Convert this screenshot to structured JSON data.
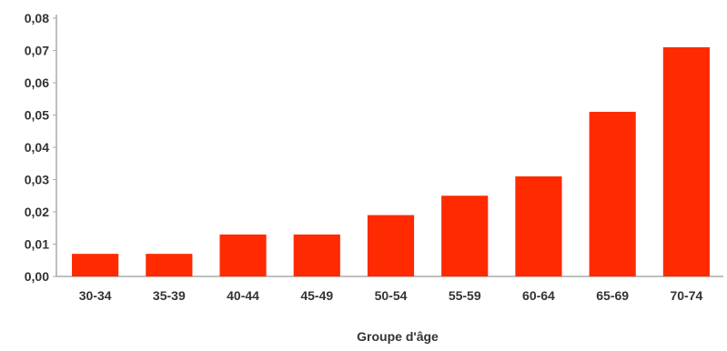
{
  "chart_data": {
    "type": "bar",
    "categories": [
      "30-34",
      "35-39",
      "40-44",
      "45-49",
      "50-54",
      "55-59",
      "60-64",
      "65-69",
      "70-74"
    ],
    "values": [
      0.007,
      0.007,
      0.013,
      0.013,
      0.019,
      0.025,
      0.031,
      0.051,
      0.071
    ],
    "xlabel": "Groupe d'âge",
    "ylabel": "",
    "ylim": [
      0,
      0.08
    ],
    "yticks": [
      "0,00",
      "0,01",
      "0,02",
      "0,03",
      "0,04",
      "0,05",
      "0,06",
      "0,07",
      "0,08"
    ],
    "grid": false,
    "bar_color": "#ff2a00",
    "axis_color": "#aaaaaa"
  }
}
